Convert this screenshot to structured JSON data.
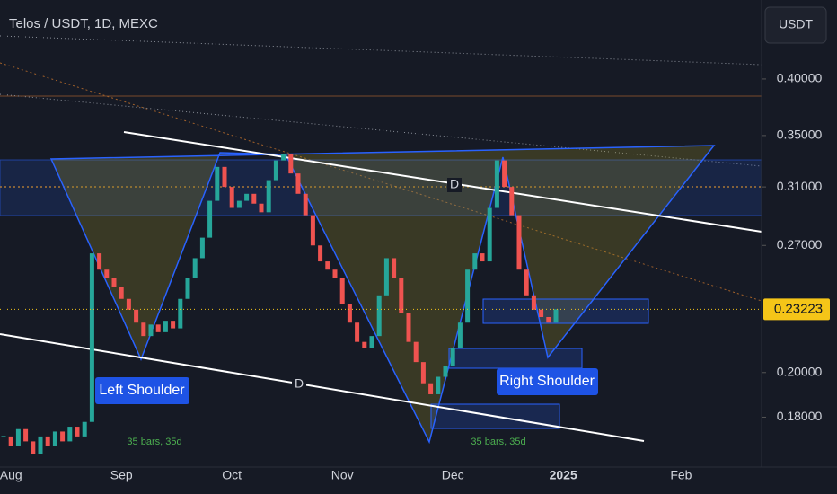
{
  "chart_data": {
    "type": "candlestick",
    "title": "Telos / USDT, 1D, MEXC",
    "currency_button": "USDT",
    "log_scale": true,
    "up_color": "#26a69a",
    "down_color": "#ef5350",
    "categories": [
      null,
      "Aug",
      null,
      null,
      null,
      null,
      null,
      null,
      null,
      null,
      null,
      null,
      null,
      null,
      null,
      null,
      "Sep",
      null,
      null,
      null,
      null,
      null,
      null,
      null,
      null,
      null,
      null,
      null,
      null,
      null,
      null,
      "Oct",
      null,
      null,
      null,
      null,
      null,
      null,
      null,
      null,
      null,
      null,
      null,
      null,
      null,
      null,
      "Nov",
      null,
      null,
      null,
      null,
      null,
      null,
      null,
      null,
      null,
      null,
      null,
      null,
      null,
      null,
      "Dec",
      null,
      null,
      null,
      null,
      null,
      null,
      null,
      null,
      null,
      null,
      null,
      null,
      null,
      null,
      "2025",
      null,
      null,
      null,
      null,
      null,
      null,
      null,
      null,
      null,
      null,
      null,
      null,
      null,
      null,
      null,
      "Feb",
      null,
      null,
      null,
      null,
      null,
      null,
      null,
      null,
      null,
      null
    ],
    "values": [
      0.172,
      0.168,
      0.175,
      0.17,
      0.165,
      0.172,
      0.168,
      0.174,
      0.17,
      0.176,
      0.172,
      0.178,
      0.265,
      0.255,
      0.25,
      0.245,
      0.238,
      0.232,
      0.225,
      0.218,
      0.224,
      0.22,
      0.226,
      0.222,
      0.238,
      0.25,
      0.262,
      0.275,
      0.3,
      0.325,
      0.31,
      0.295,
      0.3,
      0.305,
      0.298,
      0.292,
      0.315,
      0.33,
      0.335,
      0.32,
      0.305,
      0.29,
      0.27,
      0.26,
      0.255,
      0.25,
      0.235,
      0.225,
      0.215,
      0.212,
      0.218,
      0.24,
      0.262,
      0.25,
      0.23,
      0.215,
      0.205,
      0.195,
      0.19,
      0.198,
      0.203,
      0.212,
      0.225,
      0.255,
      0.265,
      0.26,
      0.295,
      0.33,
      0.31,
      0.29,
      0.255,
      0.24,
      0.232,
      0.228,
      0.225,
      0.2322,
      null,
      null,
      null,
      null,
      null,
      null,
      null,
      null,
      null,
      null,
      null,
      null,
      null,
      null,
      null,
      null,
      null,
      null,
      null,
      null,
      null,
      null,
      null,
      null,
      null,
      null,
      null
    ],
    "ylim": [
      0.16,
      0.482
    ],
    "yticks": [
      {
        "value": 0.4,
        "label": "0.40000"
      },
      {
        "value": 0.35,
        "label": "0.35000"
      },
      {
        "value": 0.31,
        "label": "0.31000"
      },
      {
        "value": 0.27,
        "label": "0.27000"
      },
      {
        "value": 0.2,
        "label": "0.20000"
      },
      {
        "value": 0.18,
        "label": "0.18000"
      }
    ],
    "last_price": 0.23223,
    "annotations": [
      "Left Shoulder",
      "Right Shoulder",
      "D",
      "D",
      "35 bars, 35d",
      "35 bars, 35d"
    ]
  }
}
